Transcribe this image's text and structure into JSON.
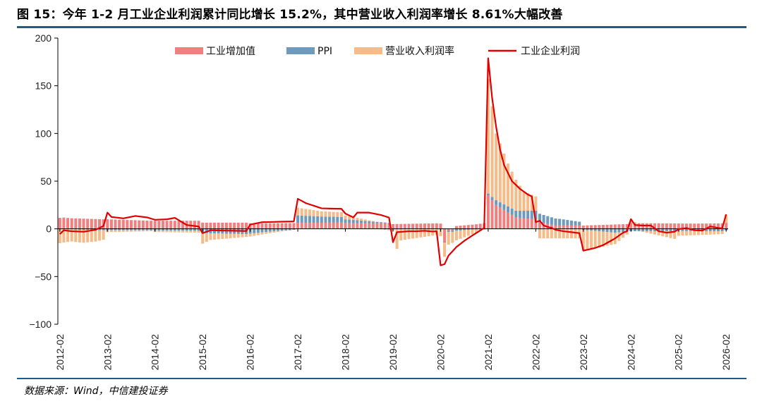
{
  "header": {
    "title": "图 15：今年 1-2 月工业企业利润累计同比增长 15.2%，其中营业收入利润率增长 8.61%大幅改善"
  },
  "footer": {
    "source": "数据来源：Wind，中信建投证券"
  },
  "colors": {
    "industrial_value_added": "#f08080",
    "ppi": "#6e9bbd",
    "revenue_profit_margin": "#f5bc8a",
    "industrial_profit": "#e00000",
    "rule": "#1e5a8a"
  },
  "chart_data": {
    "type": "bar",
    "stacked": true,
    "ylim": [
      -100,
      200
    ],
    "yticks": [
      -100,
      -50,
      0,
      50,
      100,
      150,
      200
    ],
    "xticks": [
      "2012-02",
      "2013-02",
      "2014-02",
      "2015-02",
      "2016-02",
      "2017-02",
      "2018-02",
      "2019-02",
      "2020-02",
      "2021-02",
      "2022-02",
      "2023-02",
      "2024-02",
      "2025-02",
      "2026-02"
    ],
    "legend_position": "top",
    "series": [
      {
        "name": "工业增加值",
        "kind": "bar",
        "color_key": "industrial_value_added"
      },
      {
        "name": "PPI",
        "kind": "bar",
        "color_key": "ppi"
      },
      {
        "name": "营业收入利润率",
        "kind": "bar",
        "color_key": "revenue_profit_margin"
      },
      {
        "name": "工业企业利润",
        "kind": "line",
        "color_key": "industrial_profit"
      }
    ],
    "anchors": {
      "industrial_value_added": [
        [
          0,
          11.5
        ],
        [
          11,
          10
        ],
        [
          12,
          10
        ],
        [
          23,
          8.5
        ],
        [
          24,
          8.5
        ],
        [
          35,
          8.5
        ],
        [
          36,
          6.5
        ],
        [
          47,
          6.5
        ],
        [
          48,
          5.8
        ],
        [
          59,
          6
        ],
        [
          60,
          6.3
        ],
        [
          71,
          6.5
        ],
        [
          72,
          6
        ],
        [
          83,
          6
        ],
        [
          84,
          5
        ],
        [
          95,
          5.8
        ],
        [
          96,
          5.5
        ],
        [
          97,
          -13.5
        ],
        [
          98,
          -2
        ],
        [
          99,
          -1.5
        ],
        [
          100,
          3
        ],
        [
          107,
          5.5
        ],
        [
          108,
          35
        ],
        [
          110,
          25
        ],
        [
          115,
          12
        ],
        [
          120,
          10
        ],
        [
          121,
          7
        ],
        [
          125,
          3.5
        ],
        [
          131,
          3.5
        ],
        [
          132,
          3.5
        ],
        [
          143,
          5
        ],
        [
          144,
          6
        ],
        [
          160,
          5.5
        ],
        [
          167,
          5.8
        ],
        [
          168,
          6.3
        ]
      ],
      "ppi": [
        [
          0,
          0
        ],
        [
          1,
          0.5
        ],
        [
          5,
          -1
        ],
        [
          12,
          -1.5
        ],
        [
          23,
          -1.5
        ],
        [
          24,
          -1.8
        ],
        [
          35,
          -2
        ],
        [
          36,
          -4.5
        ],
        [
          47,
          -5.5
        ],
        [
          48,
          -5
        ],
        [
          54,
          -2.5
        ],
        [
          59,
          -1
        ],
        [
          60,
          7.8
        ],
        [
          66,
          6.5
        ],
        [
          71,
          6
        ],
        [
          72,
          4
        ],
        [
          84,
          0
        ],
        [
          96,
          -0.5
        ],
        [
          100,
          -2
        ],
        [
          107,
          0.5
        ],
        [
          108,
          2
        ],
        [
          110,
          5
        ],
        [
          120,
          9
        ],
        [
          121,
          8.8
        ],
        [
          126,
          7
        ],
        [
          131,
          4
        ],
        [
          132,
          -1
        ],
        [
          140,
          -4
        ],
        [
          143,
          -3
        ],
        [
          144,
          -2.5
        ],
        [
          155,
          -2.5
        ],
        [
          156,
          -2.3
        ],
        [
          167,
          -2.5
        ],
        [
          168,
          -1.6
        ]
      ],
      "revenue_profit_margin": [
        [
          0,
          -15
        ],
        [
          3,
          -13
        ],
        [
          6,
          -13.5
        ],
        [
          9,
          -12
        ],
        [
          11,
          -10
        ],
        [
          12,
          -2
        ],
        [
          23,
          -1
        ],
        [
          24,
          -1.5
        ],
        [
          35,
          -2
        ],
        [
          36,
          -11
        ],
        [
          38,
          -7
        ],
        [
          47,
          -3
        ],
        [
          48,
          -3
        ],
        [
          59,
          0
        ],
        [
          60,
          8
        ],
        [
          66,
          5.5
        ],
        [
          71,
          5
        ],
        [
          72,
          4
        ],
        [
          84,
          -2
        ],
        [
          85,
          -21
        ],
        [
          86,
          -12
        ],
        [
          95,
          -6
        ],
        [
          96,
          -7
        ],
        [
          97,
          -15
        ],
        [
          100,
          -10
        ],
        [
          105,
          -4
        ],
        [
          107,
          -1
        ],
        [
          108,
          120
        ],
        [
          110,
          70
        ],
        [
          113,
          45
        ],
        [
          117,
          20
        ],
        [
          120,
          15
        ],
        [
          121,
          -10
        ],
        [
          131,
          -10
        ],
        [
          132,
          -22
        ],
        [
          140,
          -12
        ],
        [
          143,
          -3
        ],
        [
          144,
          2
        ],
        [
          155,
          -8
        ],
        [
          156,
          -5
        ],
        [
          167,
          -3
        ],
        [
          168,
          8.6
        ]
      ],
      "industrial_profit": [
        [
          0,
          -5.5
        ],
        [
          1,
          -1.5
        ],
        [
          3,
          -2.5
        ],
        [
          6,
          -3
        ],
        [
          9,
          -1
        ],
        [
          11,
          3
        ],
        [
          12,
          17
        ],
        [
          13,
          12.5
        ],
        [
          16,
          11
        ],
        [
          19,
          13.5
        ],
        [
          22,
          12
        ],
        [
          24,
          9.5
        ],
        [
          27,
          10
        ],
        [
          29,
          11.5
        ],
        [
          32,
          4
        ],
        [
          35,
          2.5
        ],
        [
          36,
          -4.5
        ],
        [
          38,
          -1.5
        ],
        [
          41,
          -1.8
        ],
        [
          44,
          -2
        ],
        [
          47,
          -2.3
        ],
        [
          48,
          4.5
        ],
        [
          51,
          7
        ],
        [
          56,
          7.5
        ],
        [
          59,
          7.8
        ],
        [
          60,
          31.5
        ],
        [
          62,
          27
        ],
        [
          66,
          21.5
        ],
        [
          71,
          21
        ],
        [
          72,
          16
        ],
        [
          74,
          12
        ],
        [
          75,
          17
        ],
        [
          78,
          17
        ],
        [
          81,
          14.5
        ],
        [
          83,
          11.8
        ],
        [
          84,
          -14
        ],
        [
          85,
          -3.5
        ],
        [
          88,
          -2.5
        ],
        [
          90,
          -2.5
        ],
        [
          92,
          -2
        ],
        [
          94,
          -2.8
        ],
        [
          95,
          -2.5
        ],
        [
          96,
          -38.3
        ],
        [
          97,
          -37
        ],
        [
          98,
          -28
        ],
        [
          100,
          -19
        ],
        [
          102,
          -12.5
        ],
        [
          104,
          -7
        ],
        [
          107,
          1
        ],
        [
          108,
          178.9
        ],
        [
          109,
          137
        ],
        [
          110,
          107
        ],
        [
          111,
          83
        ],
        [
          112,
          67
        ],
        [
          114,
          50
        ],
        [
          116,
          42
        ],
        [
          118,
          36
        ],
        [
          119,
          34
        ],
        [
          120,
          7
        ],
        [
          121,
          8.5
        ],
        [
          122,
          3.5
        ],
        [
          123,
          2
        ],
        [
          124,
          1
        ],
        [
          125,
          -1
        ],
        [
          127,
          -2.5
        ],
        [
          128,
          -3
        ],
        [
          130,
          -4
        ],
        [
          131,
          -4.5
        ],
        [
          132,
          -22.9
        ],
        [
          135,
          -20
        ],
        [
          137,
          -17
        ],
        [
          140,
          -10
        ],
        [
          142,
          -4
        ],
        [
          143,
          -2.5
        ],
        [
          144,
          10.2
        ],
        [
          145,
          4
        ],
        [
          147,
          3.5
        ],
        [
          149,
          3.5
        ],
        [
          151,
          -2.5
        ],
        [
          153,
          -4
        ],
        [
          155,
          -3
        ],
        [
          156,
          -0.3
        ],
        [
          158,
          0.8
        ],
        [
          160,
          -1.5
        ],
        [
          162,
          -1.8
        ],
        [
          164,
          2.5
        ],
        [
          166,
          1
        ],
        [
          167,
          0.5
        ],
        [
          168,
          15.2
        ]
      ]
    }
  }
}
